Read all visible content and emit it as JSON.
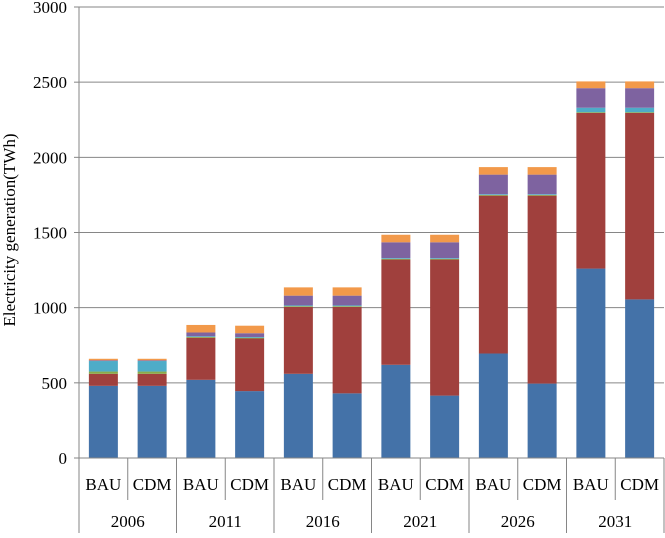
{
  "chart_data": {
    "type": "bar",
    "stacked": true,
    "ylabel": "Electricity generation(TWh)",
    "ylim": [
      0,
      3000
    ],
    "yticks": [
      0,
      500,
      1000,
      1500,
      2000,
      2500,
      3000
    ],
    "grid": true,
    "legend": "none",
    "groups": [
      "2006",
      "2011",
      "2016",
      "2021",
      "2026",
      "2031"
    ],
    "scenarios": [
      "BAU",
      "CDM"
    ],
    "categories": [
      {
        "group": "2006",
        "label": "BAU"
      },
      {
        "group": "2006",
        "label": "CDM"
      },
      {
        "group": "2011",
        "label": "BAU"
      },
      {
        "group": "2011",
        "label": "CDM"
      },
      {
        "group": "2016",
        "label": "BAU"
      },
      {
        "group": "2016",
        "label": "CDM"
      },
      {
        "group": "2021",
        "label": "BAU"
      },
      {
        "group": "2021",
        "label": "CDM"
      },
      {
        "group": "2026",
        "label": "BAU"
      },
      {
        "group": "2026",
        "label": "CDM"
      },
      {
        "group": "2031",
        "label": "BAU"
      },
      {
        "group": "2031",
        "label": "CDM"
      }
    ],
    "series": [
      {
        "color": "#4472A8",
        "values": [
          480,
          480,
          520,
          445,
          560,
          430,
          620,
          415,
          695,
          495,
          1260,
          1055
        ]
      },
      {
        "color": "#A0403D",
        "values": [
          80,
          80,
          280,
          350,
          445,
          575,
          700,
          905,
          1050,
          1250,
          1035,
          1240
        ]
      },
      {
        "color": "#8AAB4A",
        "values": [
          15,
          15,
          5,
          5,
          5,
          5,
          5,
          5,
          5,
          5,
          5,
          5
        ]
      },
      {
        "color": "#4EACC8",
        "values": [
          70,
          70,
          5,
          5,
          5,
          5,
          5,
          5,
          5,
          5,
          30,
          30
        ]
      },
      {
        "color": "#7E63A0",
        "values": [
          5,
          5,
          25,
          25,
          65,
          65,
          105,
          105,
          130,
          130,
          130,
          130
        ]
      },
      {
        "color": "#F2994A",
        "values": [
          10,
          10,
          50,
          50,
          55,
          55,
          50,
          50,
          50,
          50,
          45,
          45
        ]
      }
    ]
  }
}
